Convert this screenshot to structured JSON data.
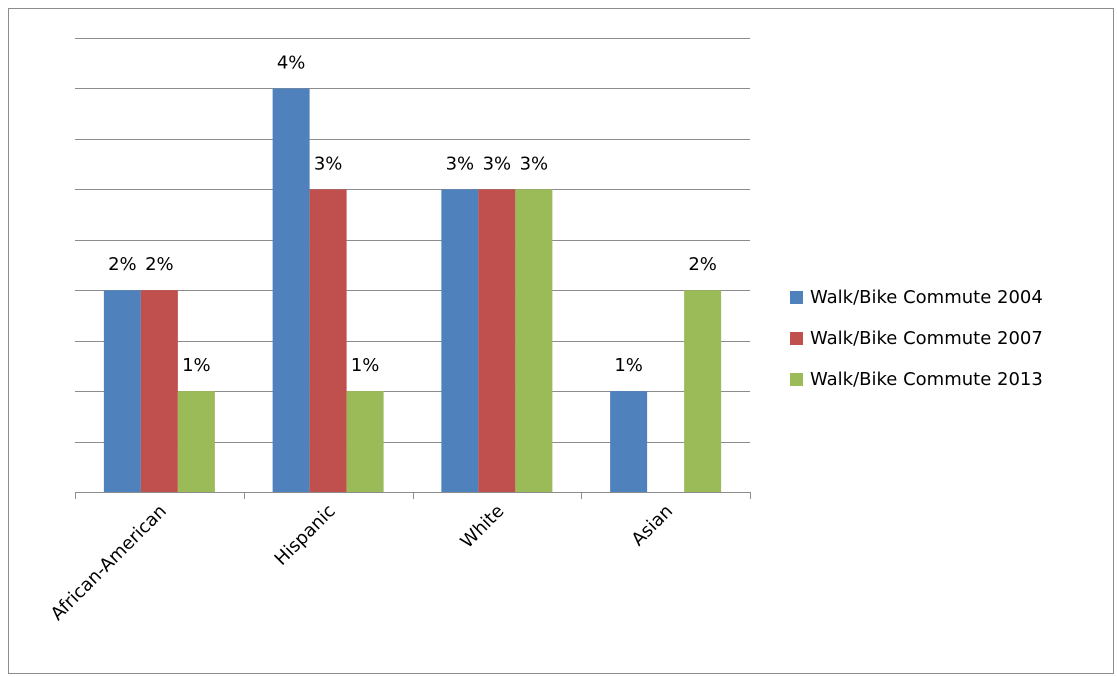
{
  "chart_data": {
    "type": "bar",
    "title": "",
    "xlabel": "",
    "ylabel": "",
    "categories": [
      "African-American",
      "Hispanic",
      "White",
      "Asian"
    ],
    "series": [
      {
        "name": "Walk/Bike Commute 2004",
        "color": "#4f81bd",
        "values": [
          2,
          4,
          3,
          1
        ],
        "labels": [
          "2%",
          "4%",
          "3%",
          "1%"
        ]
      },
      {
        "name": "Walk/Bike Commute 2007",
        "color": "#c0504d",
        "values": [
          2,
          3,
          3,
          0
        ],
        "labels": [
          "2%",
          "3%",
          "3%",
          ""
        ]
      },
      {
        "name": "Walk/Bike Commute 2013",
        "color": "#9bbb59",
        "values": [
          1,
          1,
          3,
          2
        ],
        "labels": [
          "1%",
          "1%",
          "3%",
          "2%"
        ]
      }
    ],
    "ylim": [
      0,
      4.5
    ],
    "y_gridline_step": 0.5,
    "grid": true,
    "y_tick_labels_shown": false,
    "legend_position": "right"
  }
}
